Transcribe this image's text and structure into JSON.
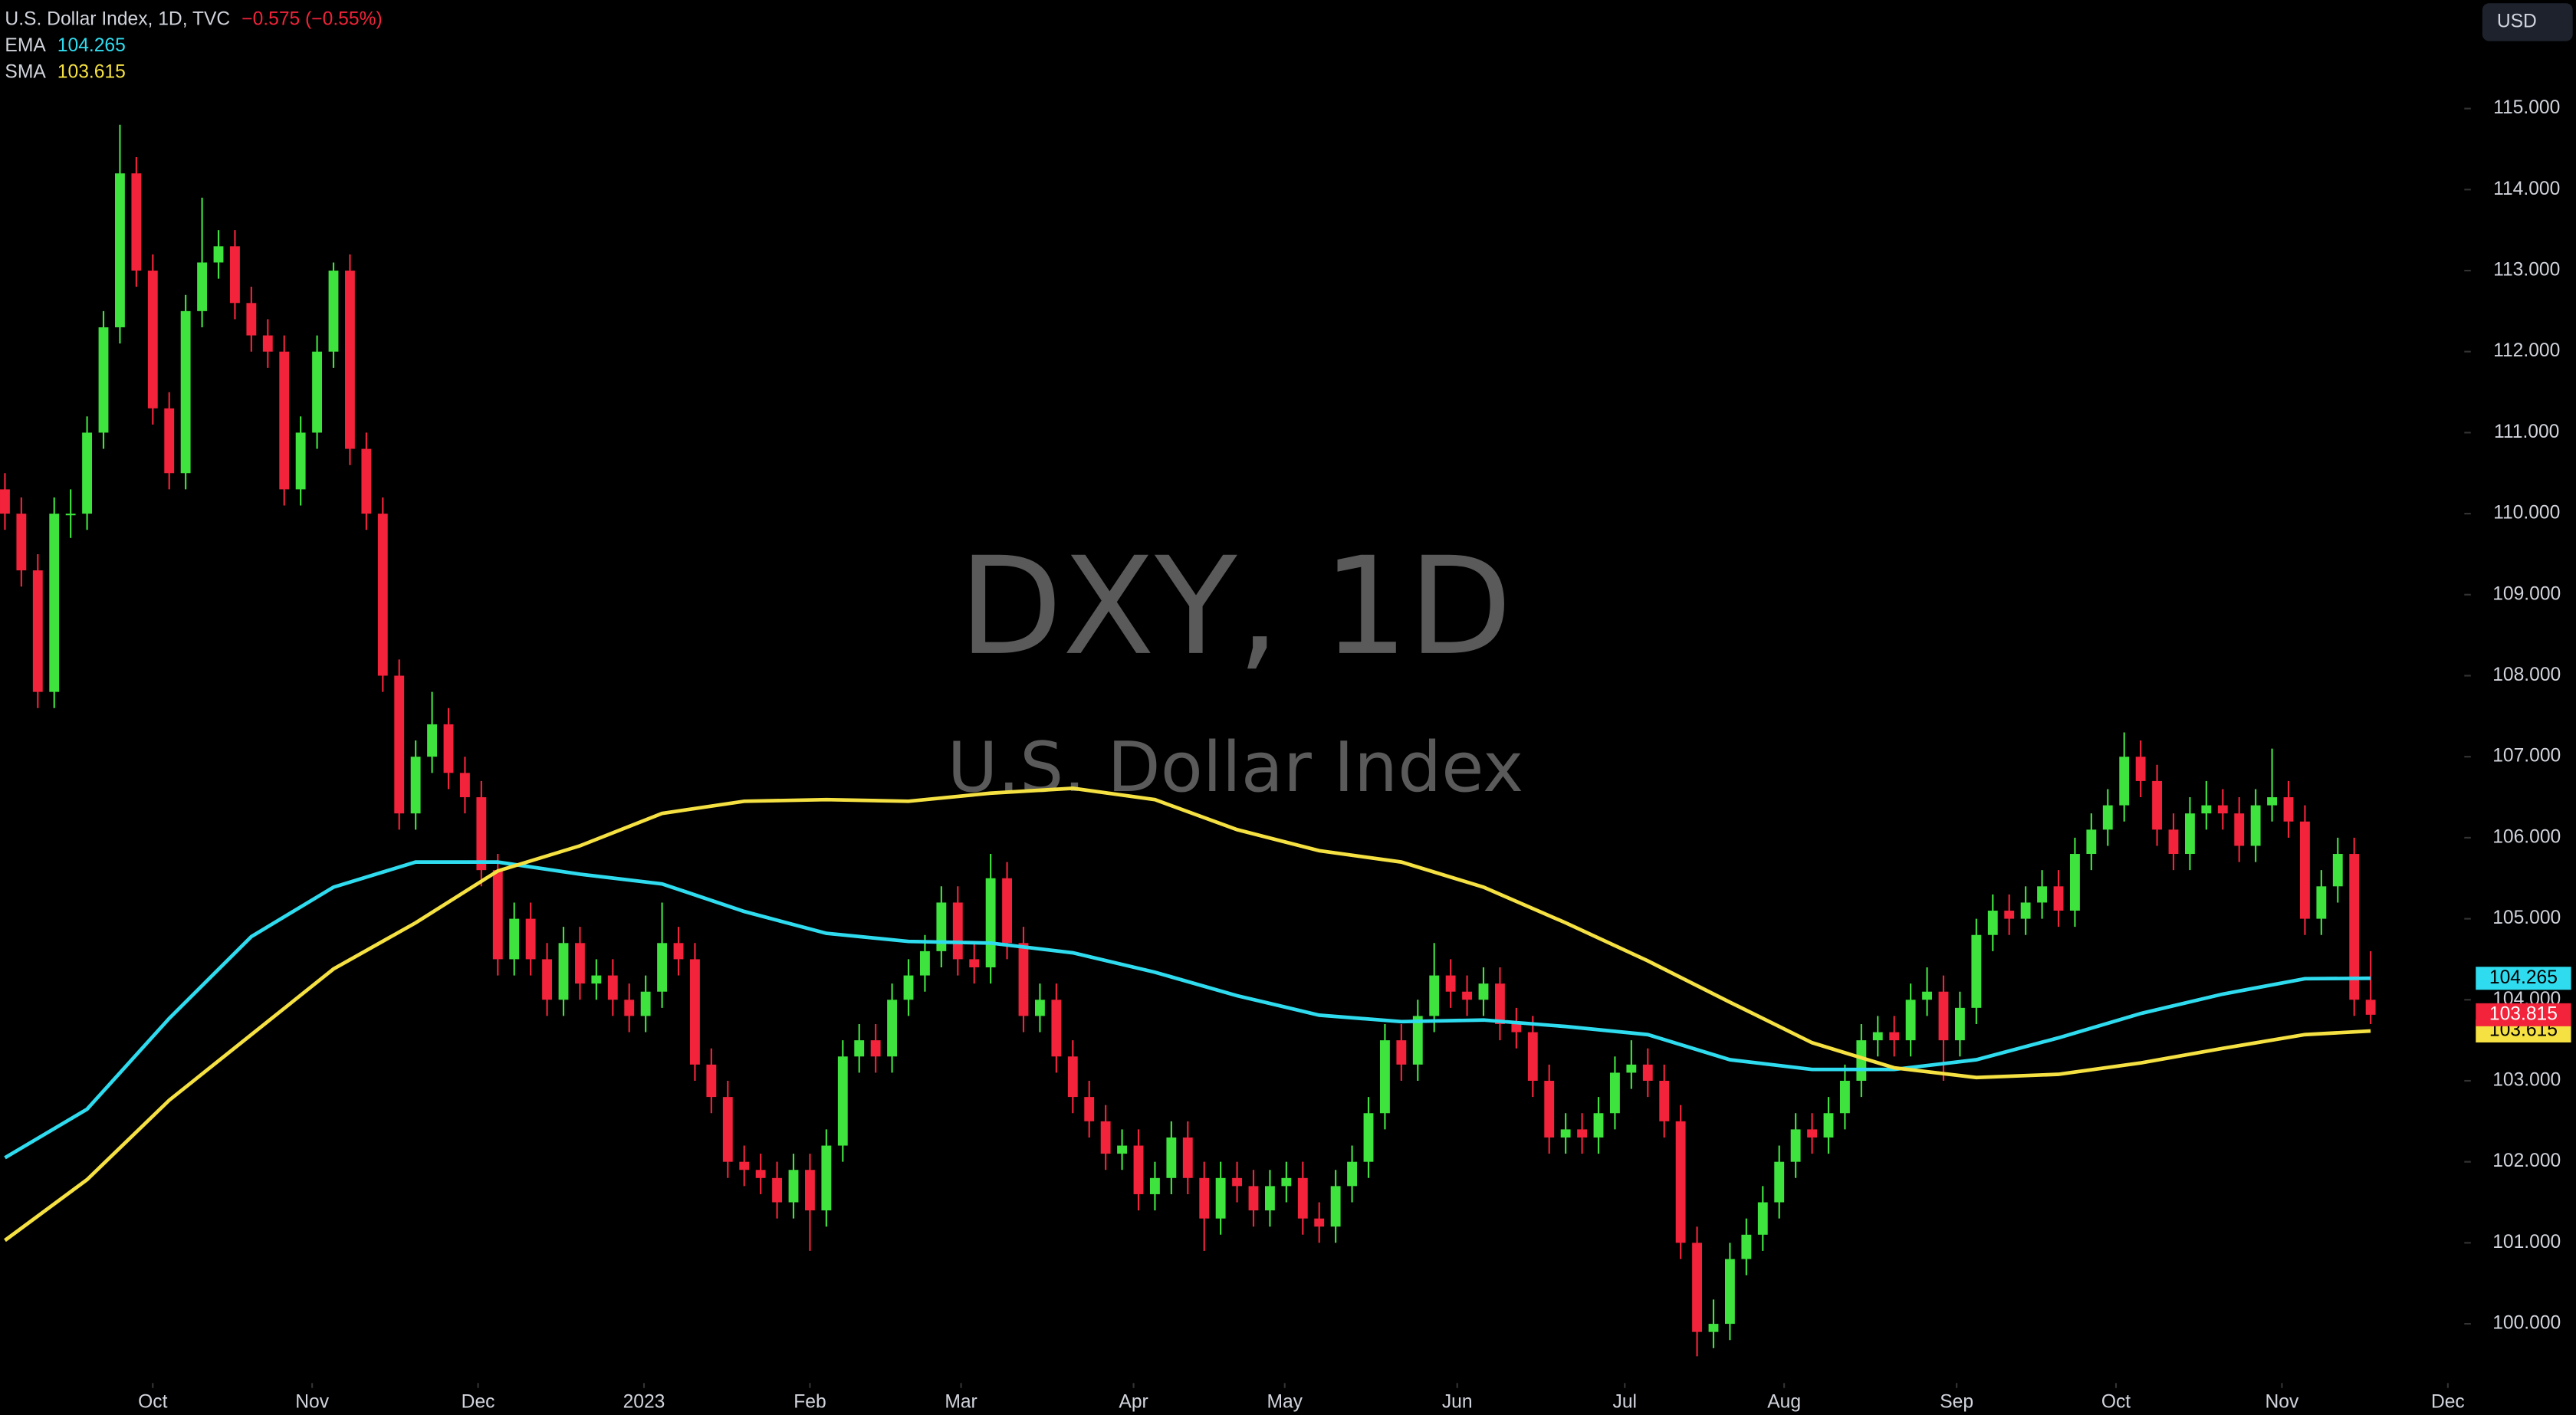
{
  "chart_data": {
    "type": "candlestick",
    "title": "U.S. Dollar Index, 1D, TVC",
    "change": "−0.575 (−0.55%)",
    "watermark_symbol": "DXY, 1D",
    "watermark_name": "U.S. Dollar Index",
    "currency": "USD",
    "up_color": "#3ee33e",
    "down_color": "#f2233a",
    "xlim": [
      -0.3,
      149.7
    ],
    "ylim": [
      99.31,
      116.34
    ],
    "xticks": [
      {
        "value": 9.0,
        "label": "Oct"
      },
      {
        "value": 18.7,
        "label": "Nov"
      },
      {
        "value": 28.8,
        "label": "Dec"
      },
      {
        "value": 38.9,
        "label": "2023"
      },
      {
        "value": 49.0,
        "label": "Feb"
      },
      {
        "value": 58.2,
        "label": "Mar"
      },
      {
        "value": 68.7,
        "label": "Apr"
      },
      {
        "value": 77.9,
        "label": "May"
      },
      {
        "value": 88.4,
        "label": "Jun"
      },
      {
        "value": 98.6,
        "label": "Jul"
      },
      {
        "value": 108.3,
        "label": "Aug"
      },
      {
        "value": 118.8,
        "label": "Sep"
      },
      {
        "value": 128.5,
        "label": "Oct"
      },
      {
        "value": 138.6,
        "label": "Nov"
      },
      {
        "value": 148.7,
        "label": "Dec"
      }
    ],
    "yticks": [
      {
        "value": 100,
        "label": "100.000"
      },
      {
        "value": 101,
        "label": "101.000"
      },
      {
        "value": 102,
        "label": "102.000"
      },
      {
        "value": 103,
        "label": "103.000"
      },
      {
        "value": 104,
        "label": "104.000"
      },
      {
        "value": 105,
        "label": "105.000"
      },
      {
        "value": 106,
        "label": "106.000"
      },
      {
        "value": 107,
        "label": "107.000"
      },
      {
        "value": 108,
        "label": "108.000"
      },
      {
        "value": 109,
        "label": "109.000"
      },
      {
        "value": 110,
        "label": "110.000"
      },
      {
        "value": 111,
        "label": "111.000"
      },
      {
        "value": 112,
        "label": "112.000"
      },
      {
        "value": 113,
        "label": "113.000"
      },
      {
        "value": 114,
        "label": "114.000"
      },
      {
        "value": 115,
        "label": "115.000"
      }
    ],
    "x": [
      0,
      1,
      2,
      3,
      4,
      5,
      6,
      7,
      8,
      9,
      10,
      11,
      12,
      13,
      14,
      15,
      16,
      17,
      18,
      19,
      20,
      21,
      22,
      23,
      24,
      25,
      26,
      27,
      28,
      29,
      30,
      31,
      32,
      33,
      34,
      35,
      36,
      37,
      38,
      39,
      40,
      41,
      42,
      43,
      44,
      45,
      46,
      47,
      48,
      49,
      50,
      51,
      52,
      53,
      54,
      55,
      56,
      57,
      58,
      59,
      60,
      61,
      62,
      63,
      64,
      65,
      66,
      67,
      68,
      69,
      70,
      71,
      72,
      73,
      74,
      75,
      76,
      77,
      78,
      79,
      80,
      81,
      82,
      83,
      84,
      85,
      86,
      87,
      88,
      89,
      90,
      91,
      92,
      93,
      94,
      95,
      96,
      97,
      98,
      99,
      100,
      101,
      102,
      103,
      104,
      105,
      106,
      107,
      108,
      109,
      110,
      111,
      112,
      113,
      114,
      115,
      116,
      117,
      118,
      119,
      120,
      121,
      122,
      123,
      124,
      125,
      126,
      127,
      128,
      129,
      130,
      131,
      132,
      133,
      134,
      135,
      136,
      137,
      138,
      139,
      140,
      141,
      142,
      143,
      144
    ],
    "ohlc": [
      [
        110.3,
        110.5,
        109.8,
        110.0
      ],
      [
        110.0,
        110.2,
        109.1,
        109.3
      ],
      [
        109.3,
        109.5,
        107.6,
        107.8
      ],
      [
        107.8,
        110.2,
        107.6,
        110.0
      ],
      [
        110.0,
        110.3,
        109.7,
        110.0
      ],
      [
        110.0,
        111.2,
        109.8,
        111.0
      ],
      [
        111.0,
        112.5,
        110.8,
        112.3
      ],
      [
        112.3,
        114.8,
        112.1,
        114.2
      ],
      [
        114.2,
        114.4,
        112.8,
        113.0
      ],
      [
        113.0,
        113.2,
        111.1,
        111.3
      ],
      [
        111.3,
        111.5,
        110.3,
        110.5
      ],
      [
        110.5,
        112.7,
        110.3,
        112.5
      ],
      [
        112.5,
        113.9,
        112.3,
        113.1
      ],
      [
        113.1,
        113.5,
        112.9,
        113.3
      ],
      [
        113.3,
        113.5,
        112.4,
        112.6
      ],
      [
        112.6,
        112.8,
        112.0,
        112.2
      ],
      [
        112.2,
        112.4,
        111.8,
        112.0
      ],
      [
        112.0,
        112.2,
        110.1,
        110.3
      ],
      [
        110.3,
        111.2,
        110.1,
        111.0
      ],
      [
        111.0,
        112.2,
        110.8,
        112.0
      ],
      [
        112.0,
        113.1,
        111.8,
        113.0
      ],
      [
        113.0,
        113.2,
        110.6,
        110.8
      ],
      [
        110.8,
        111.0,
        109.8,
        110.0
      ],
      [
        110.0,
        110.2,
        107.8,
        108.0
      ],
      [
        108.0,
        108.2,
        106.1,
        106.3
      ],
      [
        106.3,
        107.2,
        106.1,
        107.0
      ],
      [
        107.0,
        107.8,
        106.8,
        107.4
      ],
      [
        107.4,
        107.6,
        106.6,
        106.8
      ],
      [
        106.8,
        107.0,
        106.3,
        106.5
      ],
      [
        106.5,
        106.7,
        105.4,
        105.6
      ],
      [
        105.6,
        105.8,
        104.3,
        104.5
      ],
      [
        104.5,
        105.2,
        104.3,
        105.0
      ],
      [
        105.0,
        105.2,
        104.3,
        104.5
      ],
      [
        104.5,
        104.7,
        103.8,
        104.0
      ],
      [
        104.0,
        104.9,
        103.8,
        104.7
      ],
      [
        104.7,
        104.9,
        104.0,
        104.2
      ],
      [
        104.2,
        104.5,
        104.0,
        104.3
      ],
      [
        104.3,
        104.5,
        103.8,
        104.0
      ],
      [
        104.0,
        104.2,
        103.6,
        103.8
      ],
      [
        103.8,
        104.3,
        103.6,
        104.1
      ],
      [
        104.1,
        105.2,
        103.9,
        104.7
      ],
      [
        104.7,
        104.9,
        104.3,
        104.5
      ],
      [
        104.5,
        104.7,
        103.0,
        103.2
      ],
      [
        103.2,
        103.4,
        102.6,
        102.8
      ],
      [
        102.8,
        103.0,
        101.8,
        102.0
      ],
      [
        102.0,
        102.2,
        101.7,
        101.9
      ],
      [
        101.9,
        102.1,
        101.6,
        101.8
      ],
      [
        101.8,
        102.0,
        101.3,
        101.5
      ],
      [
        101.5,
        102.1,
        101.3,
        101.9
      ],
      [
        101.9,
        102.1,
        100.9,
        101.4
      ],
      [
        101.4,
        102.4,
        101.2,
        102.2
      ],
      [
        102.2,
        103.5,
        102.0,
        103.3
      ],
      [
        103.3,
        103.7,
        103.1,
        103.5
      ],
      [
        103.5,
        103.7,
        103.1,
        103.3
      ],
      [
        103.3,
        104.2,
        103.1,
        104.0
      ],
      [
        104.0,
        104.5,
        103.8,
        104.3
      ],
      [
        104.3,
        104.8,
        104.1,
        104.6
      ],
      [
        104.6,
        105.4,
        104.4,
        105.2
      ],
      [
        105.2,
        105.4,
        104.3,
        104.5
      ],
      [
        104.5,
        104.7,
        104.2,
        104.4
      ],
      [
        104.4,
        105.8,
        104.2,
        105.5
      ],
      [
        105.5,
        105.7,
        104.5,
        104.7
      ],
      [
        104.7,
        104.9,
        103.6,
        103.8
      ],
      [
        103.8,
        104.2,
        103.6,
        104.0
      ],
      [
        104.0,
        104.2,
        103.1,
        103.3
      ],
      [
        103.3,
        103.5,
        102.6,
        102.8
      ],
      [
        102.8,
        103.0,
        102.3,
        102.5
      ],
      [
        102.5,
        102.7,
        101.9,
        102.1
      ],
      [
        102.1,
        102.4,
        101.9,
        102.2
      ],
      [
        102.2,
        102.4,
        101.4,
        101.6
      ],
      [
        101.6,
        102.0,
        101.4,
        101.8
      ],
      [
        101.8,
        102.5,
        101.6,
        102.3
      ],
      [
        102.3,
        102.5,
        101.6,
        101.8
      ],
      [
        101.8,
        102.0,
        100.9,
        101.3
      ],
      [
        101.3,
        102.0,
        101.1,
        101.8
      ],
      [
        101.8,
        102.0,
        101.5,
        101.7
      ],
      [
        101.7,
        101.9,
        101.2,
        101.4
      ],
      [
        101.4,
        101.9,
        101.2,
        101.7
      ],
      [
        101.7,
        102.0,
        101.5,
        101.8
      ],
      [
        101.8,
        102.0,
        101.1,
        101.3
      ],
      [
        101.3,
        101.5,
        101.0,
        101.2
      ],
      [
        101.2,
        101.9,
        101.0,
        101.7
      ],
      [
        101.7,
        102.2,
        101.5,
        102.0
      ],
      [
        102.0,
        102.8,
        101.8,
        102.6
      ],
      [
        102.6,
        103.7,
        102.4,
        103.5
      ],
      [
        103.5,
        103.7,
        103.0,
        103.2
      ],
      [
        103.2,
        104.0,
        103.0,
        103.8
      ],
      [
        103.8,
        104.7,
        103.6,
        104.3
      ],
      [
        104.3,
        104.5,
        103.9,
        104.1
      ],
      [
        104.1,
        104.3,
        103.8,
        104.0
      ],
      [
        104.0,
        104.4,
        103.8,
        104.2
      ],
      [
        104.2,
        104.4,
        103.5,
        103.7
      ],
      [
        103.7,
        103.9,
        103.4,
        103.6
      ],
      [
        103.6,
        103.8,
        102.8,
        103.0
      ],
      [
        103.0,
        103.2,
        102.1,
        102.3
      ],
      [
        102.3,
        102.6,
        102.1,
        102.4
      ],
      [
        102.4,
        102.6,
        102.1,
        102.3
      ],
      [
        102.3,
        102.8,
        102.1,
        102.6
      ],
      [
        102.6,
        103.3,
        102.4,
        103.1
      ],
      [
        103.1,
        103.5,
        102.9,
        103.2
      ],
      [
        103.2,
        103.4,
        102.8,
        103.0
      ],
      [
        103.0,
        103.2,
        102.3,
        102.5
      ],
      [
        102.5,
        102.7,
        100.8,
        101.0
      ],
      [
        101.0,
        101.2,
        99.6,
        99.9
      ],
      [
        99.9,
        100.3,
        99.7,
        100.0
      ],
      [
        100.0,
        101.0,
        99.8,
        100.8
      ],
      [
        100.8,
        101.3,
        100.6,
        101.1
      ],
      [
        101.1,
        101.7,
        100.9,
        101.5
      ],
      [
        101.5,
        102.2,
        101.3,
        102.0
      ],
      [
        102.0,
        102.6,
        101.8,
        102.4
      ],
      [
        102.4,
        102.6,
        102.1,
        102.3
      ],
      [
        102.3,
        102.8,
        102.1,
        102.6
      ],
      [
        102.6,
        103.2,
        102.4,
        103.0
      ],
      [
        103.0,
        103.7,
        102.8,
        103.5
      ],
      [
        103.5,
        103.8,
        103.3,
        103.6
      ],
      [
        103.6,
        103.8,
        103.3,
        103.5
      ],
      [
        103.5,
        104.2,
        103.3,
        104.0
      ],
      [
        104.0,
        104.4,
        103.8,
        104.1
      ],
      [
        104.1,
        104.3,
        103.0,
        103.5
      ],
      [
        103.5,
        104.1,
        103.3,
        103.9
      ],
      [
        103.9,
        105.0,
        103.7,
        104.8
      ],
      [
        104.8,
        105.3,
        104.6,
        105.1
      ],
      [
        105.1,
        105.3,
        104.8,
        105.0
      ],
      [
        105.0,
        105.4,
        104.8,
        105.2
      ],
      [
        105.2,
        105.6,
        105.0,
        105.4
      ],
      [
        105.4,
        105.6,
        104.9,
        105.1
      ],
      [
        105.1,
        106.0,
        104.9,
        105.8
      ],
      [
        105.8,
        106.3,
        105.6,
        106.1
      ],
      [
        106.1,
        106.6,
        105.9,
        106.4
      ],
      [
        106.4,
        107.3,
        106.2,
        107.0
      ],
      [
        107.0,
        107.2,
        106.5,
        106.7
      ],
      [
        106.7,
        106.9,
        105.9,
        106.1
      ],
      [
        106.1,
        106.3,
        105.6,
        105.8
      ],
      [
        105.8,
        106.5,
        105.6,
        106.3
      ],
      [
        106.3,
        106.7,
        106.1,
        106.4
      ],
      [
        106.4,
        106.6,
        106.1,
        106.3
      ],
      [
        106.3,
        106.5,
        105.7,
        105.9
      ],
      [
        105.9,
        106.6,
        105.7,
        106.4
      ],
      [
        106.4,
        107.1,
        106.2,
        106.5
      ],
      [
        106.5,
        106.7,
        106.0,
        106.2
      ],
      [
        106.2,
        106.4,
        104.8,
        105.0
      ],
      [
        105.0,
        105.6,
        104.8,
        105.4
      ],
      [
        105.4,
        106.0,
        105.2,
        105.8
      ],
      [
        105.8,
        106.0,
        103.8,
        104.0
      ],
      [
        104.0,
        104.6,
        103.7,
        103.815
      ]
    ],
    "lines": [
      {
        "name": "EMA",
        "color": "#2fdcef",
        "last": 104.265,
        "x": [
          0,
          5,
          10,
          15,
          20,
          25,
          30,
          35,
          40,
          45,
          50,
          55,
          60,
          65,
          70,
          75,
          80,
          85,
          90,
          95,
          100,
          105,
          110,
          115,
          120,
          125,
          130,
          135,
          140,
          144
        ],
        "values": [
          102.05,
          102.65,
          103.77,
          104.78,
          105.39,
          105.7,
          105.7,
          105.55,
          105.43,
          105.09,
          104.82,
          104.72,
          104.7,
          104.58,
          104.34,
          104.05,
          103.81,
          103.73,
          103.75,
          103.67,
          103.57,
          103.26,
          103.14,
          103.14,
          103.26,
          103.53,
          103.83,
          104.07,
          104.26,
          104.265
        ]
      },
      {
        "name": "SMA",
        "color": "#f5e142",
        "last": 103.615,
        "x": [
          0,
          5,
          10,
          15,
          20,
          25,
          30,
          35,
          40,
          45,
          50,
          55,
          60,
          65,
          70,
          75,
          80,
          85,
          90,
          95,
          100,
          105,
          110,
          115,
          120,
          125,
          130,
          135,
          140,
          144
        ],
        "values": [
          101.03,
          101.78,
          102.76,
          103.57,
          104.38,
          104.95,
          105.59,
          105.9,
          106.3,
          106.45,
          106.47,
          106.45,
          106.55,
          106.61,
          106.47,
          106.1,
          105.84,
          105.7,
          105.39,
          104.95,
          104.48,
          103.97,
          103.47,
          103.16,
          103.04,
          103.08,
          103.22,
          103.4,
          103.57,
          103.615
        ]
      }
    ]
  }
}
